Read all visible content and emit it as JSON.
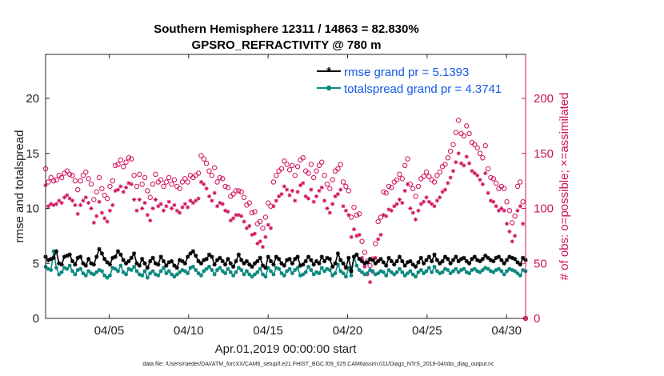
{
  "chart_data": {
    "type": "line",
    "title_line1": "Southern Hemisphere 12311 / 14863 = 82.830%",
    "title_line2": "GPSRO_REFRACTIVITY @ 780 m",
    "xlabel": "Apr.01,2019 00:00:00 start",
    "ylabel": "rmse and totalspread",
    "ylabel_right": "# of obs: o=possible; ×=assimilated",
    "xlim": [
      1,
      31.2
    ],
    "ylim": [
      0,
      24
    ],
    "ylim_right": [
      0,
      240
    ],
    "x_ticks": [
      5,
      10,
      15,
      20,
      25,
      30
    ],
    "x_tick_labels": [
      "04/05",
      "04/10",
      "04/15",
      "04/20",
      "04/25",
      "04/30"
    ],
    "y_ticks": [
      0,
      5,
      10,
      15,
      20
    ],
    "y_ticks_right": [
      0,
      50,
      100,
      150,
      200
    ],
    "footer": "data file: /Users/raeder/DAI/ATM_forcXX/CAM6_setup/f.e21.FHIST_BGC.f09_025.CAM6assim.011/Diags_NTrS_2019-04/obs_diag_output.nc",
    "colors": {
      "rmse": "#000000",
      "spread": "#0e8a80",
      "obs": "#d0105e",
      "legend_text": "#1458e6"
    },
    "series": [
      {
        "name": "rmse grand pr = 5.1393",
        "key": "rmse",
        "values": [
          5.6,
          5.3,
          5.4,
          5.5,
          6.1,
          5.0,
          4.9,
          5.6,
          5.7,
          5.8,
          5.2,
          4.9,
          5.5,
          5.6,
          5.0,
          4.8,
          5.4,
          5.0,
          4.9,
          5.6,
          6.3,
          5.9,
          5.4,
          5.1,
          4.9,
          5.5,
          5.6,
          6.1,
          5.8,
          5.3,
          5.0,
          5.2,
          5.5,
          5.9,
          5.0,
          4.8,
          5.4,
          5.0,
          4.6,
          5.2,
          5.5,
          5.0,
          4.9,
          5.6,
          5.2,
          4.8,
          5.1,
          5.2,
          4.8,
          4.6,
          5.3,
          5.2,
          5.0,
          5.6,
          5.9,
          6.1,
          5.7,
          5.2,
          5.0,
          5.3,
          5.4,
          5.8,
          5.6,
          4.9,
          5.3,
          5.5,
          5.2,
          4.9,
          5.4,
          5.0,
          4.7,
          5.2,
          5.8,
          5.3,
          5.0,
          5.2,
          4.9,
          4.7,
          5.0,
          5.2,
          5.5,
          4.8,
          4.6,
          5.6,
          5.2,
          4.9,
          5.6,
          5.4,
          5.0,
          4.8,
          5.3,
          5.4,
          5.0,
          5.4,
          5.6,
          4.8,
          4.9,
          5.2,
          5.6,
          5.3,
          4.9,
          5.2,
          5.0,
          5.6,
          5.2,
          5.5,
          5.4,
          4.7,
          5.0,
          5.9,
          5.3,
          5.0,
          4.6,
          5.5,
          4.3,
          5.6,
          5.8,
          5.4,
          5.2,
          5.0,
          5.1,
          5.4,
          5.3,
          5.0,
          5.2,
          5.4,
          5.1,
          4.8,
          5.5,
          5.2,
          4.9,
          5.2,
          5.6,
          5.2,
          4.8,
          5.1,
          5.2,
          4.9,
          4.7,
          5.1,
          5.5,
          5.0,
          5.3,
          5.6,
          5.2,
          5.8,
          5.3,
          5.0,
          5.2,
          5.6,
          5.4,
          5.0,
          5.3,
          5.6,
          5.2,
          5.4,
          5.5,
          5.2,
          5.0,
          5.4,
          5.6,
          5.3,
          5.2,
          5.4,
          5.7,
          5.5,
          5.3,
          5.2,
          5.5,
          5.6,
          5.3,
          5.0,
          5.3,
          5.6,
          5.5,
          5.4,
          5.1,
          4.9,
          5.5,
          5.3
        ]
      },
      {
        "name": "totalspread grand pr = 4.3741",
        "key": "spread",
        "values": [
          4.7,
          4.5,
          4.4,
          6.1,
          4.6,
          4.0,
          4.2,
          4.6,
          4.5,
          4.8,
          4.3,
          4.0,
          4.4,
          4.5,
          4.1,
          3.9,
          4.3,
          4.1,
          4.0,
          4.2,
          4.4,
          4.3,
          3.9,
          3.7,
          3.9,
          4.6,
          4.5,
          4.3,
          4.8,
          4.2,
          4.0,
          4.5,
          4.4,
          4.7,
          4.3,
          4.0,
          3.9,
          4.3,
          3.7,
          4.1,
          4.3,
          4.0,
          3.9,
          4.3,
          4.6,
          4.1,
          4.3,
          4.0,
          3.8,
          4.0,
          4.2,
          4.4,
          4.3,
          4.1,
          4.6,
          4.7,
          4.4,
          4.1,
          3.9,
          4.3,
          4.5,
          4.7,
          4.4,
          4.0,
          4.4,
          4.6,
          4.3,
          4.1,
          4.5,
          4.2,
          3.9,
          4.2,
          4.6,
          4.4,
          4.0,
          4.3,
          4.0,
          3.8,
          4.0,
          4.2,
          4.5,
          4.0,
          3.8,
          4.6,
          4.3,
          4.0,
          4.6,
          4.5,
          4.1,
          3.9,
          4.3,
          4.5,
          4.1,
          4.4,
          4.6,
          3.9,
          4.0,
          4.2,
          4.7,
          4.4,
          4.0,
          4.2,
          4.1,
          4.6,
          4.3,
          4.5,
          4.4,
          3.9,
          4.1,
          4.9,
          4.3,
          4.1,
          3.8,
          4.6,
          3.9,
          5.6,
          4.8,
          4.4,
          4.2,
          4.0,
          4.1,
          4.4,
          4.3,
          4.0,
          4.1,
          4.3,
          4.2,
          3.9,
          4.4,
          4.2,
          4.0,
          4.2,
          4.5,
          4.2,
          3.9,
          4.1,
          4.3,
          4.0,
          3.8,
          4.2,
          4.4,
          4.1,
          4.3,
          4.6,
          4.2,
          4.7,
          4.3,
          4.1,
          4.2,
          4.5,
          4.4,
          4.1,
          4.3,
          4.5,
          4.2,
          4.4,
          4.5,
          4.2,
          4.1,
          4.4,
          4.5,
          4.3,
          4.2,
          4.4,
          4.6,
          4.5,
          4.3,
          4.2,
          4.4,
          4.5,
          4.3,
          4.0,
          4.3,
          4.5,
          4.4,
          4.3,
          4.1,
          3.9,
          4.4,
          4.3
        ]
      },
      {
        "name": "obs possible",
        "key": "possible",
        "values": [
          136,
          124,
          128,
          125,
          126,
          130,
          128,
          132,
          134,
          131,
          130,
          125,
          117,
          125,
          130,
          133,
          127,
          122,
          108,
          115,
          128,
          118,
          112,
          109,
          120,
          125,
          139,
          140,
          144,
          138,
          142,
          146,
          145,
          130,
          120,
          131,
          122,
          128,
          116,
          110,
          122,
          131,
          124,
          126,
          120,
          124,
          128,
          122,
          126,
          120,
          118,
          124,
          127,
          124,
          130,
          128,
          130,
          132,
          148,
          145,
          141,
          134,
          130,
          137,
          124,
          128,
          127,
          120,
          119,
          111,
          113,
          116,
          116,
          115,
          110,
          103,
          105,
          96,
          97,
          86,
          88,
          82,
          92,
          105,
          102,
          124,
          130,
          134,
          136,
          143,
          140,
          135,
          139,
          130,
          138,
          144,
          146,
          134,
          132,
          140,
          128,
          134,
          139,
          142,
          130,
          122,
          118,
          126,
          134,
          136,
          140,
          124,
          120,
          116,
          92,
          101,
          94,
          95,
          70,
          60,
          52,
          48,
          54,
          68,
          88,
          92,
          115,
          114,
          120,
          119,
          124,
          126,
          131,
          127,
          139,
          145,
          122,
          118,
          111,
          120,
          127,
          129,
          133,
          129,
          126,
          124,
          130,
          133,
          138,
          140,
          146,
          152,
          158,
          169,
          180,
          168,
          166,
          175,
          168,
          160,
          158,
          155,
          150,
          146,
          157,
          136,
          128,
          127,
          123,
          118,
          120,
          118,
          106,
          98,
          87,
          93,
          120,
          124,
          106,
          0
        ]
      },
      {
        "name": "obs assimilated",
        "key": "assimilated",
        "values": [
          121,
          102,
          104,
          103,
          104,
          107,
          105,
          110,
          112,
          109,
          107,
          103,
          95,
          103,
          107,
          110,
          105,
          100,
          87,
          93,
          106,
          96,
          91,
          88,
          98,
          103,
          116,
          117,
          120,
          115,
          119,
          123,
          122,
          108,
          98,
          108,
          100,
          105,
          94,
          89,
          100,
          108,
          102,
          104,
          98,
          102,
          106,
          100,
          103,
          98,
          96,
          101,
          104,
          101,
          107,
          105,
          107,
          109,
          124,
          122,
          118,
          111,
          107,
          114,
          102,
          105,
          104,
          98,
          97,
          89,
          91,
          94,
          94,
          93,
          88,
          82,
          84,
          76,
          77,
          68,
          70,
          65,
          74,
          85,
          82,
          102,
          107,
          111,
          113,
          120,
          117,
          112,
          116,
          107,
          115,
          121,
          123,
          111,
          109,
          117,
          106,
          111,
          116,
          119,
          107,
          100,
          96,
          104,
          111,
          113,
          117,
          102,
          98,
          94,
          74,
          81,
          75,
          76,
          55,
          47,
          40,
          33,
          42,
          55,
          72,
          76,
          94,
          93,
          99,
          98,
          102,
          104,
          108,
          105,
          116,
          122,
          100,
          96,
          90,
          98,
          104,
          106,
          110,
          106,
          104,
          102,
          107,
          110,
          115,
          117,
          123,
          128,
          134,
          142,
          150,
          141,
          139,
          147,
          141,
          134,
          132,
          130,
          126,
          122,
          132,
          114,
          107,
          106,
          102,
          98,
          100,
          98,
          86,
          79,
          70,
          75,
          98,
          102,
          86,
          0
        ]
      }
    ]
  }
}
